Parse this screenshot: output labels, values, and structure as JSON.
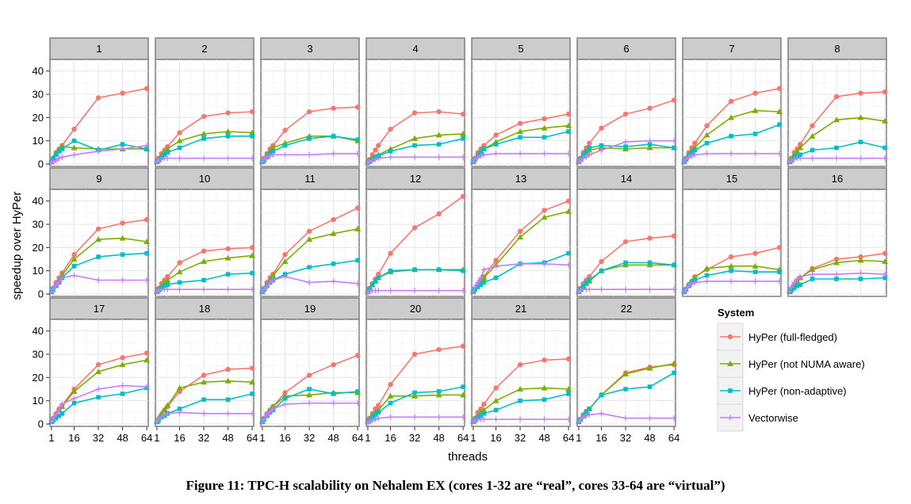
{
  "chart_data": {
    "type": "line",
    "layout": "faceted grid 3 rows x 8 columns (22 panels)",
    "xlabel": "threads",
    "ylabel": "speedup over HyPer",
    "x": [
      1,
      2,
      4,
      6,
      8,
      16,
      32,
      48,
      64
    ],
    "x_ticks": [
      1,
      16,
      32,
      48,
      64
    ],
    "x_tick_labels": [
      "1",
      "16",
      "32",
      "48",
      "64"
    ],
    "xlim": [
      0,
      65
    ],
    "ylim": [
      -1,
      45
    ],
    "y_ticks": [
      0,
      10,
      20,
      30,
      40
    ],
    "y_tick_labels": [
      "0",
      "10",
      "20",
      "30",
      "40"
    ],
    "grid": true,
    "legend": {
      "title": "System",
      "position": "right",
      "entries": [
        {
          "name": "HyPer (full-fledged)",
          "color": "#f8766d",
          "marker": "circle"
        },
        {
          "name": "HyPer (not NUMA aware)",
          "color": "#7cae00",
          "marker": "triangle"
        },
        {
          "name": "HyPer (non-adaptive)",
          "color": "#00bfc4",
          "marker": "square"
        },
        {
          "name": "Vectorwise",
          "color": "#c77cff",
          "marker": "plus"
        }
      ]
    },
    "panels": [
      {
        "label": "1",
        "series": [
          [
            1,
            2.5,
            5,
            6.5,
            8,
            15,
            28.5,
            30.5,
            32.5
          ],
          [
            1,
            2.5,
            4.5,
            6,
            7.5,
            7,
            6.5,
            6.5,
            6.5
          ],
          [
            1,
            2,
            4,
            5.5,
            6.5,
            10,
            6,
            8.5,
            6.5
          ],
          [
            0.5,
            1,
            1.5,
            2.5,
            3,
            4,
            5.5,
            6.5,
            8
          ]
        ]
      },
      {
        "label": "2",
        "series": [
          [
            1,
            2.5,
            4.5,
            6,
            7.5,
            13.5,
            20.5,
            22,
            22.5
          ],
          [
            1,
            2,
            3.5,
            5,
            6.5,
            10,
            13,
            14,
            13.5
          ],
          [
            1,
            1.5,
            3,
            4,
            5,
            7,
            11,
            12,
            12
          ],
          [
            1,
            1.5,
            2,
            2.5,
            2.5,
            2.5,
            2.5,
            2.5,
            2.5
          ]
        ]
      },
      {
        "label": "3",
        "series": [
          [
            1,
            2.5,
            4.5,
            6.5,
            8,
            14.5,
            22.5,
            24,
            24.5
          ],
          [
            1,
            2,
            4,
            5.5,
            7,
            9,
            12,
            12,
            10
          ],
          [
            1,
            1.5,
            3,
            4.5,
            5.5,
            8,
            11,
            12,
            10.5
          ],
          [
            1,
            2,
            3,
            3.5,
            4,
            4,
            4,
            4.5,
            4.5
          ]
        ]
      },
      {
        "label": "4",
        "series": [
          [
            1,
            2,
            4,
            6,
            8,
            15,
            22,
            22.5,
            21.5
          ],
          [
            1,
            1.5,
            2.5,
            3,
            4,
            6.5,
            11,
            12.5,
            13
          ],
          [
            0.5,
            1,
            2,
            3,
            3.5,
            5.5,
            8,
            8.5,
            11
          ],
          [
            0.5,
            1,
            1.5,
            2,
            2.5,
            3,
            3,
            3,
            3
          ]
        ]
      },
      {
        "label": "5",
        "series": [
          [
            1,
            2.5,
            5,
            6.5,
            8,
            12.5,
            17.5,
            19.5,
            21.5
          ],
          [
            1,
            2,
            4,
            5.5,
            6.5,
            9.5,
            14,
            15.5,
            16.5
          ],
          [
            1,
            2,
            3.5,
            5,
            6.5,
            8.5,
            11.5,
            11.5,
            14
          ],
          [
            1,
            2,
            3,
            3.5,
            4,
            4.5,
            4.5,
            4.5,
            4.5
          ]
        ]
      },
      {
        "label": "6",
        "series": [
          [
            1,
            2.5,
            5,
            7,
            9,
            15.5,
            21.5,
            24,
            27.5
          ],
          [
            1,
            2,
            3.5,
            5,
            6,
            7,
            6.5,
            7,
            7
          ],
          [
            1,
            2,
            4,
            5.5,
            7,
            8,
            7.5,
            8.5,
            7
          ],
          [
            1,
            1.5,
            2.5,
            3,
            4,
            6,
            9.5,
            10,
            10
          ]
        ]
      },
      {
        "label": "7",
        "series": [
          [
            1,
            2.5,
            5,
            7,
            9,
            16.5,
            27,
            30.5,
            32.5
          ],
          [
            1,
            2,
            4,
            5.5,
            7,
            12.5,
            20,
            23,
            22.5
          ],
          [
            1,
            2,
            3.5,
            5,
            6,
            9,
            12,
            13,
            17
          ],
          [
            1,
            2,
            3,
            3.5,
            4,
            4.5,
            4.5,
            4.5,
            4.5
          ]
        ]
      },
      {
        "label": "8",
        "series": [
          [
            1,
            2.5,
            5,
            6.5,
            8.5,
            16.5,
            29,
            30.5,
            31
          ],
          [
            1,
            2,
            4,
            5.5,
            7,
            12,
            19,
            20,
            18.5
          ],
          [
            1,
            1.5,
            3,
            3.5,
            4,
            6,
            7,
            9.5,
            7
          ],
          [
            1,
            1.5,
            2,
            2.5,
            2.5,
            2.5,
            2.5,
            2.5,
            2.5
          ]
        ]
      },
      {
        "label": "9",
        "series": [
          [
            1,
            2.5,
            5,
            7,
            9,
            17,
            28,
            30.5,
            32
          ],
          [
            1,
            2,
            4,
            6,
            8,
            15,
            23.5,
            24,
            22.5
          ],
          [
            1,
            2,
            3.5,
            5,
            7,
            12,
            16,
            17,
            17.5
          ],
          [
            1,
            2,
            4,
            5,
            7,
            8,
            6,
            6,
            6
          ]
        ]
      },
      {
        "label": "10",
        "series": [
          [
            1,
            2.5,
            4.5,
            6,
            7.5,
            13.5,
            18.5,
            19.5,
            20
          ],
          [
            1,
            2,
            3.5,
            5,
            6,
            9.5,
            14,
            15.5,
            16.5
          ],
          [
            1,
            1.5,
            2.5,
            3.5,
            4,
            5,
            6,
            8.5,
            9
          ],
          [
            1,
            1.5,
            2,
            2,
            2,
            2,
            2,
            2,
            2
          ]
        ]
      },
      {
        "label": "11",
        "series": [
          [
            1,
            2.5,
            5,
            7,
            8.5,
            17,
            27,
            32,
            37
          ],
          [
            1,
            2,
            4,
            6,
            8,
            14,
            23.5,
            26,
            28
          ],
          [
            1,
            2,
            3.5,
            5,
            6,
            8.5,
            11.5,
            13,
            14.5
          ],
          [
            1,
            2,
            3,
            5,
            6,
            7.5,
            5,
            5.5,
            4.5
          ]
        ]
      },
      {
        "label": "12",
        "series": [
          [
            1,
            2.5,
            4.5,
            6.5,
            8.5,
            17.5,
            28.5,
            34.5,
            42
          ],
          [
            1,
            2,
            4,
            5.5,
            7,
            9.5,
            10.5,
            10.5,
            10.5
          ],
          [
            1,
            2,
            4,
            5.5,
            7,
            10,
            10.5,
            10.5,
            10
          ],
          [
            0.5,
            1,
            1.5,
            1.5,
            1.5,
            1.5,
            1.5,
            1.5,
            1.5
          ]
        ]
      },
      {
        "label": "13",
        "series": [
          [
            1,
            2,
            4,
            6,
            7.5,
            14.5,
            27,
            36,
            40
          ],
          [
            1,
            2,
            4,
            6,
            7,
            12.5,
            24.5,
            33,
            35.5
          ],
          [
            1,
            2,
            3,
            4,
            5,
            7,
            13,
            13.5,
            17.5
          ],
          [
            1,
            3,
            5,
            7,
            10.5,
            12,
            13,
            13,
            12.5
          ]
        ]
      },
      {
        "label": "14",
        "series": [
          [
            1,
            2.5,
            4.5,
            6,
            7.5,
            14,
            22.5,
            24,
            25
          ],
          [
            1,
            2,
            3,
            4.5,
            5.5,
            10,
            12.5,
            12.5,
            12.5
          ],
          [
            1,
            2,
            3.5,
            5,
            6,
            10,
            13.5,
            13.5,
            12.5
          ],
          [
            1,
            1.5,
            2,
            2,
            2,
            2,
            2,
            2,
            2
          ]
        ]
      },
      {
        "label": "15",
        "series": [
          [
            1,
            2,
            4,
            5.5,
            7.5,
            10.5,
            16,
            17.5,
            20
          ],
          [
            1,
            2,
            4,
            5.5,
            7,
            11,
            12,
            12,
            10.5
          ],
          [
            1,
            2,
            3.5,
            5,
            6,
            8,
            10,
            9.5,
            9.5
          ],
          [
            1,
            2,
            3.5,
            4.5,
            5,
            5.5,
            5.5,
            5.5,
            5.5
          ]
        ]
      },
      {
        "label": "16",
        "series": [
          [
            1,
            2,
            4,
            5.5,
            7,
            11,
            15,
            16,
            17.5
          ],
          [
            1,
            2,
            4,
            5,
            7,
            10.5,
            13.5,
            14.5,
            14
          ],
          [
            1,
            1.5,
            2.5,
            3.5,
            4,
            6.5,
            6.5,
            6.5,
            7
          ],
          [
            1,
            3,
            5,
            6.5,
            7.5,
            8.5,
            8.5,
            9,
            8.5
          ]
        ]
      },
      {
        "label": "17",
        "series": [
          [
            1,
            2.5,
            4.5,
            6.5,
            8,
            15,
            25.5,
            28.5,
            30.5
          ],
          [
            1,
            2,
            4,
            6,
            7.5,
            14,
            22.5,
            25.5,
            27.5
          ],
          [
            1,
            1.5,
            2.5,
            3.5,
            4.5,
            9,
            11.5,
            13,
            15.5
          ],
          [
            1,
            2,
            4,
            6,
            8.5,
            11,
            15,
            16.5,
            16
          ]
        ]
      },
      {
        "label": "18",
        "series": [
          [
            1,
            2,
            4,
            6,
            7.5,
            14,
            21,
            23.5,
            24
          ],
          [
            1,
            2.5,
            4.5,
            6,
            8,
            15.5,
            18,
            18.5,
            18
          ],
          [
            1,
            1.5,
            3,
            3.5,
            4.5,
            6.5,
            10.5,
            10.5,
            13
          ],
          [
            1,
            2,
            3,
            4,
            4.5,
            5,
            4.5,
            4.5,
            4.5
          ]
        ]
      },
      {
        "label": "19",
        "series": [
          [
            1,
            2.5,
            4.5,
            6,
            7.5,
            13.5,
            21,
            25.5,
            29.5
          ],
          [
            1,
            2,
            4,
            6,
            7.5,
            12,
            12.5,
            13.5,
            13.5
          ],
          [
            1,
            2,
            3.5,
            5,
            6,
            11,
            15,
            13,
            14
          ],
          [
            1,
            2,
            4,
            5,
            6.5,
            8.5,
            9,
            9,
            9
          ]
        ]
      },
      {
        "label": "20",
        "series": [
          [
            1,
            2.5,
            4.5,
            6.5,
            8,
            17,
            30,
            32,
            33.5
          ],
          [
            1,
            2,
            3.5,
            5,
            6,
            12,
            12,
            12.5,
            12.5
          ],
          [
            1,
            1.5,
            3,
            4,
            5,
            9,
            13.5,
            14,
            16
          ],
          [
            0.5,
            1,
            1.5,
            2,
            2.5,
            3,
            3,
            3,
            3
          ]
        ]
      },
      {
        "label": "21",
        "series": [
          [
            1,
            2.5,
            5,
            6.5,
            8.5,
            15.5,
            25.5,
            27.5,
            28
          ],
          [
            1,
            2,
            3.5,
            5,
            6,
            10,
            15,
            15.5,
            15
          ],
          [
            1,
            1.5,
            3,
            3.5,
            4.5,
            6,
            10,
            10.5,
            13
          ],
          [
            1,
            1.5,
            2,
            2,
            2,
            2,
            2,
            2,
            2
          ]
        ]
      },
      {
        "label": "22",
        "series": [
          [
            1,
            2,
            4,
            5.5,
            6.5,
            12.5,
            22,
            24.5,
            25.5
          ],
          [
            1,
            2,
            3.5,
            5,
            6.5,
            12.5,
            21.5,
            24,
            26
          ],
          [
            1,
            2,
            3.5,
            5,
            6.5,
            12.5,
            15,
            16,
            22
          ],
          [
            1,
            2,
            3,
            3.5,
            4,
            4.5,
            2.5,
            2.5,
            2.5
          ]
        ]
      }
    ]
  },
  "caption": "Figure 11: TPC-H scalability on Nehalem EX (cores 1-32 are “real”, cores 33-64 are “virtual”)"
}
